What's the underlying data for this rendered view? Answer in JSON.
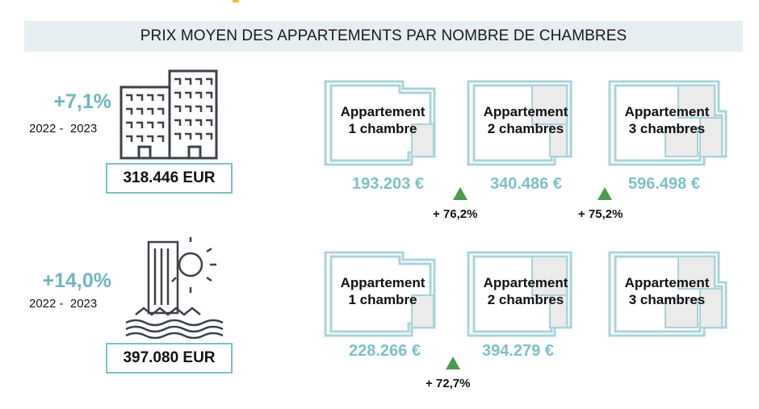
{
  "title": "PRIX MOYEN DES APPARTEMENTS PAR NOMBRE DE CHAMBRES",
  "colors": {
    "accent": "#6fb6c0",
    "growth": "#4c9a4c",
    "title_bg": "#e6eef1"
  },
  "rows": [
    {
      "icon": "city-buildings-icon",
      "pct": "+7,1%",
      "period": "2022 -  2023",
      "total": "318.446 EUR",
      "apartments": [
        {
          "line1": "Appartement",
          "line2": "1 chambre",
          "price": "193.203 €"
        },
        {
          "line1": "Appartement",
          "line2": "2 chambres",
          "price": "340.486 €"
        },
        {
          "line1": "Appartement",
          "line2": "3 chambres",
          "price": "596.498 €"
        }
      ],
      "growth": [
        "+ 76,2%",
        "+ 75,2%"
      ]
    },
    {
      "icon": "coastal-building-sun-icon",
      "pct": "+14,0%",
      "period": "2022 -  2023",
      "total": "397.080 EUR",
      "apartments": [
        {
          "line1": "Appartement",
          "line2": "1 chambre",
          "price": "228.266 €"
        },
        {
          "line1": "Appartement",
          "line2": "2 chambres",
          "price": "394.279 €"
        },
        {
          "line1": "Appartement",
          "line2": "3 chambres",
          "price": ""
        }
      ],
      "growth": [
        "+ 72,7%"
      ]
    }
  ],
  "chart_data": {
    "type": "table",
    "title": "PRIX MOYEN DES APPARTEMENTS PAR NOMBRE DE CHAMBRES",
    "columns": [
      "Appartement 1 chambre",
      "Appartement 2 chambres",
      "Appartement 3 chambres"
    ],
    "rows": [
      {
        "variation": "+7,1%",
        "period": "2022 - 2023",
        "average": "318.446 EUR",
        "values": [
          193203,
          340486,
          596498
        ],
        "growth": [
          "+ 76,2%",
          "+ 75,2%"
        ]
      },
      {
        "variation": "+14,0%",
        "period": "2022 - 2023",
        "average": "397.080 EUR",
        "values": [
          228266,
          394279,
          null
        ],
        "growth": [
          "+ 72,7%"
        ]
      }
    ],
    "unit": "€"
  }
}
